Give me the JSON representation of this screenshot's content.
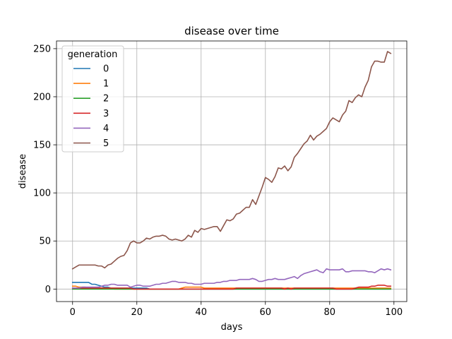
{
  "chart_data": {
    "type": "line",
    "title": "disease over time",
    "xlabel": "days",
    "ylabel": "disease",
    "xlim": [
      -5,
      104
    ],
    "ylim": [
      -13,
      258
    ],
    "xticks": [
      0,
      20,
      40,
      60,
      80,
      100
    ],
    "yticks": [
      0,
      50,
      100,
      150,
      200,
      250
    ],
    "grid": true,
    "legend": {
      "title": "generation",
      "placement": "top-left"
    },
    "x": [
      0,
      1,
      2,
      3,
      4,
      5,
      6,
      7,
      8,
      9,
      10,
      11,
      12,
      13,
      14,
      15,
      16,
      17,
      18,
      19,
      20,
      21,
      22,
      23,
      24,
      25,
      26,
      27,
      28,
      29,
      30,
      31,
      32,
      33,
      34,
      35,
      36,
      37,
      38,
      39,
      40,
      41,
      42,
      43,
      44,
      45,
      46,
      47,
      48,
      49,
      50,
      51,
      52,
      53,
      54,
      55,
      56,
      57,
      58,
      59,
      60,
      61,
      62,
      63,
      64,
      65,
      66,
      67,
      68,
      69,
      70,
      71,
      72,
      73,
      74,
      75,
      76,
      77,
      78,
      79,
      80,
      81,
      82,
      83,
      84,
      85,
      86,
      87,
      88,
      89,
      90,
      91,
      92,
      93,
      94,
      95,
      96,
      97,
      98,
      99
    ],
    "series": [
      {
        "name": "0",
        "color": "#1f77b4",
        "values": [
          7,
          7,
          7,
          7,
          7,
          7,
          5,
          5,
          4,
          3,
          2,
          2,
          1,
          1,
          1,
          1,
          1,
          1,
          1,
          1,
          1,
          1,
          1,
          1,
          0,
          0,
          0,
          0,
          0,
          0,
          0,
          0,
          0,
          0,
          0,
          0,
          0,
          0,
          0,
          0,
          0,
          0,
          0,
          0,
          0,
          0,
          0,
          0,
          0,
          0,
          0,
          0,
          0,
          0,
          0,
          0,
          0,
          0,
          0,
          0,
          0,
          0,
          0,
          0,
          0,
          0,
          0,
          0,
          0,
          0,
          0,
          0,
          0,
          0,
          0,
          0,
          0,
          0,
          0,
          0,
          0,
          0,
          0,
          0,
          0,
          0,
          0,
          0,
          0,
          0,
          0,
          0,
          0,
          0,
          0,
          0,
          0,
          0,
          0,
          0
        ]
      },
      {
        "name": "1",
        "color": "#ff7f0e",
        "values": [
          3,
          3,
          2,
          2,
          2,
          1,
          1,
          1,
          1,
          1,
          1,
          1,
          1,
          0,
          0,
          0,
          0,
          0,
          0,
          0,
          0,
          0,
          0,
          0,
          0,
          0,
          0,
          0,
          0,
          0,
          0,
          0,
          0,
          0,
          1,
          2,
          2,
          2,
          2,
          2,
          2,
          1,
          1,
          1,
          1,
          1,
          1,
          1,
          1,
          1,
          1,
          1,
          1,
          1,
          1,
          1,
          1,
          1,
          1,
          1,
          1,
          1,
          1,
          1,
          1,
          1,
          1,
          1,
          1,
          1,
          1,
          1,
          1,
          1,
          1,
          1,
          1,
          1,
          1,
          1,
          1,
          1,
          1,
          1,
          1,
          1,
          1,
          1,
          1,
          1,
          1,
          1,
          1,
          1,
          1,
          1,
          1,
          1,
          1,
          1
        ]
      },
      {
        "name": "2",
        "color": "#2ca02c",
        "values": [
          0,
          0,
          0,
          0,
          0,
          0,
          0,
          0,
          0,
          0,
          0,
          0,
          0,
          0,
          0,
          0,
          0,
          0,
          0,
          0,
          0,
          0,
          0,
          0,
          0,
          0,
          0,
          0,
          0,
          0,
          0,
          0,
          0,
          0,
          0,
          0,
          0,
          0,
          0,
          0,
          0,
          0,
          0,
          0,
          0,
          0,
          0,
          0,
          0,
          0,
          0,
          0,
          0,
          0,
          0,
          0,
          0,
          0,
          0,
          0,
          0,
          0,
          0,
          0,
          0,
          0,
          0,
          0,
          0,
          0,
          0,
          0,
          0,
          0,
          0,
          0,
          0,
          0,
          0,
          0,
          0,
          0,
          0,
          0,
          0,
          0,
          0,
          0,
          0,
          0,
          0,
          0,
          0,
          0,
          0,
          0,
          0,
          0,
          0,
          0
        ]
      },
      {
        "name": "3",
        "color": "#d62728",
        "values": [
          1,
          1,
          1,
          1,
          1,
          1,
          1,
          1,
          1,
          1,
          1,
          1,
          1,
          1,
          1,
          1,
          1,
          1,
          1,
          0,
          0,
          0,
          0,
          0,
          0,
          0,
          0,
          0,
          0,
          0,
          0,
          0,
          0,
          0,
          0,
          0,
          0,
          0,
          0,
          0,
          0,
          0,
          0,
          0,
          0,
          0,
          0,
          0,
          0,
          0,
          0,
          1,
          1,
          1,
          1,
          1,
          1,
          1,
          1,
          1,
          1,
          1,
          1,
          1,
          1,
          1,
          0,
          1,
          0,
          1,
          1,
          1,
          1,
          1,
          1,
          1,
          1,
          1,
          1,
          1,
          1,
          1,
          0,
          0,
          0,
          0,
          0,
          0,
          1,
          2,
          2,
          2,
          2,
          3,
          3,
          4,
          4,
          4,
          3,
          3
        ]
      },
      {
        "name": "4",
        "color": "#9467bd",
        "values": [
          1,
          1,
          1,
          2,
          2,
          2,
          2,
          2,
          2,
          3,
          4,
          4,
          5,
          5,
          4,
          4,
          4,
          4,
          2,
          3,
          4,
          4,
          3,
          3,
          3,
          4,
          5,
          5,
          6,
          6,
          7,
          8,
          8,
          7,
          7,
          7,
          6,
          6,
          5,
          5,
          5,
          6,
          6,
          6,
          6,
          7,
          7,
          8,
          8,
          9,
          9,
          9,
          10,
          10,
          10,
          10,
          11,
          10,
          8,
          8,
          9,
          10,
          10,
          11,
          10,
          10,
          10,
          11,
          12,
          13,
          11,
          14,
          16,
          17,
          18,
          19,
          20,
          18,
          17,
          21,
          20,
          20,
          20,
          20,
          21,
          18,
          18,
          19,
          19,
          19,
          19,
          19,
          18,
          18,
          17,
          19,
          21,
          20,
          21,
          20
        ]
      },
      {
        "name": "5",
        "color": "#8c564b",
        "values": [
          21,
          23,
          25,
          25,
          25,
          25,
          25,
          25,
          24,
          24,
          22,
          25,
          26,
          29,
          32,
          34,
          35,
          40,
          48,
          50,
          48,
          48,
          50,
          53,
          52,
          54,
          55,
          55,
          56,
          55,
          52,
          51,
          52,
          51,
          50,
          52,
          56,
          54,
          61,
          59,
          63,
          62,
          63,
          64,
          65,
          65,
          60,
          66,
          72,
          71,
          73,
          78,
          79,
          82,
          85,
          85,
          93,
          88,
          97,
          106,
          116,
          114,
          111,
          117,
          126,
          125,
          128,
          123,
          127,
          137,
          141,
          146,
          151,
          154,
          160,
          155,
          159,
          161,
          164,
          167,
          174,
          178,
          176,
          174,
          181,
          185,
          196,
          194,
          199,
          202,
          200,
          210,
          217,
          231,
          237,
          237,
          236,
          236,
          247,
          245
        ]
      }
    ]
  }
}
